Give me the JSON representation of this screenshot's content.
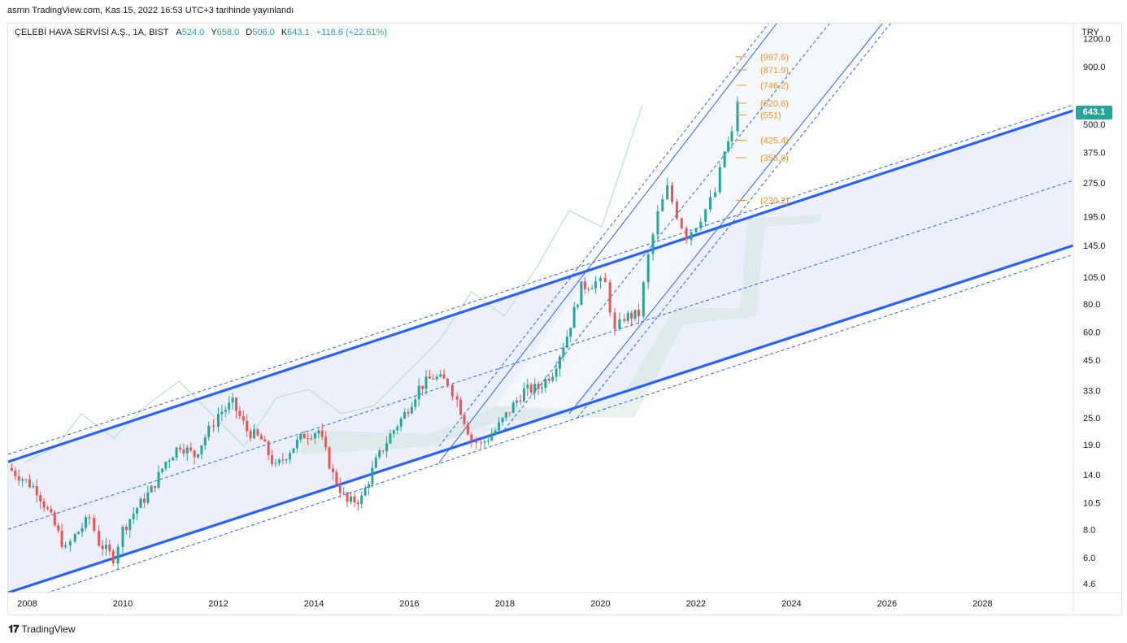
{
  "header": {
    "caption": "asrnn TradingView.com, Kas 15, 2022 16:53 UTC+3 tarihinde yayınlandı"
  },
  "legend": {
    "symbol": "ÇELEBİ HAVA SERVİSİ A.Ş., 1A, BIST",
    "open_label": "A",
    "open": "524.0",
    "high_label": "Y",
    "high": "658.0",
    "low_label": "D",
    "low": "506.0",
    "close_label": "K",
    "close": "643.1",
    "change": "+118.6 (+22.61%)"
  },
  "price_axis": {
    "currency": "TRY",
    "last_price": "643.1"
  },
  "footer": {
    "brand": "TradingView"
  },
  "colors": {
    "up": "#26a69a",
    "down": "#ef5350",
    "channel": "#2962ff",
    "fib": "#f7931a",
    "channel_fill": "#e8edfb"
  },
  "chart_data": {
    "type": "candlestick",
    "scale": "log",
    "ylim": [
      4.2,
      1400
    ],
    "x_range": [
      "2007-07",
      "2029-12"
    ],
    "y_ticks": [
      "1200.0",
      "900.0",
      "500.0",
      "375.0",
      "275.0",
      "195.0",
      "145.0",
      "105.0",
      "80.0",
      "60.0",
      "45.0",
      "33.0",
      "25.0",
      "19.0",
      "14.0",
      "10.5",
      "8.0",
      "6.0",
      "4.6"
    ],
    "y_tick_values": [
      1200,
      900,
      500,
      375,
      275,
      195,
      145,
      105,
      80,
      60,
      45,
      33,
      25,
      19,
      14,
      10.5,
      8,
      6,
      4.6
    ],
    "x_ticks": [
      "2008",
      "2010",
      "2012",
      "2014",
      "2016",
      "2018",
      "2020",
      "2022",
      "2024",
      "2026",
      "2028"
    ],
    "x_tick_values": [
      2008,
      2010,
      2012,
      2014,
      2016,
      2018,
      2020,
      2022,
      2024,
      2026,
      2028
    ],
    "fib_levels": [
      "(997.6)",
      "(871.9)",
      "(746.2)",
      "(620.6)",
      "(551)",
      "(425.4)",
      "(355.8)",
      "(230.2)"
    ],
    "fib_values": [
      997.6,
      871.9,
      746.2,
      620.6,
      551,
      425.4,
      355.8,
      230.2
    ],
    "close_path": [
      [
        2007.6,
        15
      ],
      [
        2007.9,
        13.5
      ],
      [
        2008.2,
        12
      ],
      [
        2008.5,
        9
      ],
      [
        2008.8,
        6.5
      ],
      [
        2009.0,
        7.5
      ],
      [
        2009.3,
        9
      ],
      [
        2009.5,
        7
      ],
      [
        2009.8,
        6
      ],
      [
        2010.0,
        8
      ],
      [
        2010.3,
        10
      ],
      [
        2010.6,
        12
      ],
      [
        2010.9,
        16
      ],
      [
        2011.2,
        19
      ],
      [
        2011.5,
        17
      ],
      [
        2011.8,
        22
      ],
      [
        2012.0,
        26
      ],
      [
        2012.3,
        29
      ],
      [
        2012.6,
        22
      ],
      [
        2012.9,
        20
      ],
      [
        2013.2,
        15
      ],
      [
        2013.5,
        18
      ],
      [
        2013.8,
        21
      ],
      [
        2014.1,
        22
      ],
      [
        2014.4,
        14
      ],
      [
        2014.7,
        10.5
      ],
      [
        2015.0,
        11
      ],
      [
        2015.3,
        16
      ],
      [
        2015.6,
        21
      ],
      [
        2015.9,
        26
      ],
      [
        2016.2,
        34
      ],
      [
        2016.5,
        38
      ],
      [
        2016.8,
        36
      ],
      [
        2017.0,
        30
      ],
      [
        2017.3,
        20
      ],
      [
        2017.5,
        19
      ],
      [
        2017.8,
        22
      ],
      [
        2018.1,
        27
      ],
      [
        2018.4,
        33
      ],
      [
        2018.7,
        34
      ],
      [
        2019.0,
        40
      ],
      [
        2019.3,
        58
      ],
      [
        2019.6,
        95
      ],
      [
        2019.9,
        100
      ],
      [
        2020.1,
        98
      ],
      [
        2020.3,
        60
      ],
      [
        2020.5,
        70
      ],
      [
        2020.8,
        72
      ],
      [
        2021.0,
        130
      ],
      [
        2021.2,
        200
      ],
      [
        2021.4,
        260
      ],
      [
        2021.6,
        200
      ],
      [
        2021.8,
        160
      ],
      [
        2022.0,
        180
      ],
      [
        2022.2,
        210
      ],
      [
        2022.4,
        250
      ],
      [
        2022.6,
        380
      ],
      [
        2022.75,
        450
      ],
      [
        2022.87,
        643.1
      ]
    ]
  }
}
